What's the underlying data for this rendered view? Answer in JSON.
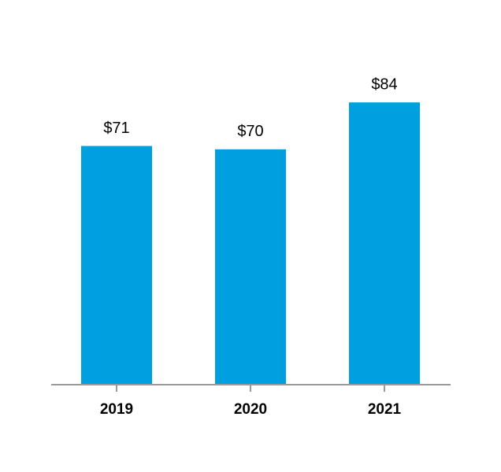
{
  "chart_data": {
    "type": "bar",
    "categories": [
      "2019",
      "2020",
      "2021"
    ],
    "values": [
      71,
      70,
      84
    ],
    "value_labels": [
      "$71",
      "$70",
      "$84"
    ],
    "color": "#009fdf"
  }
}
